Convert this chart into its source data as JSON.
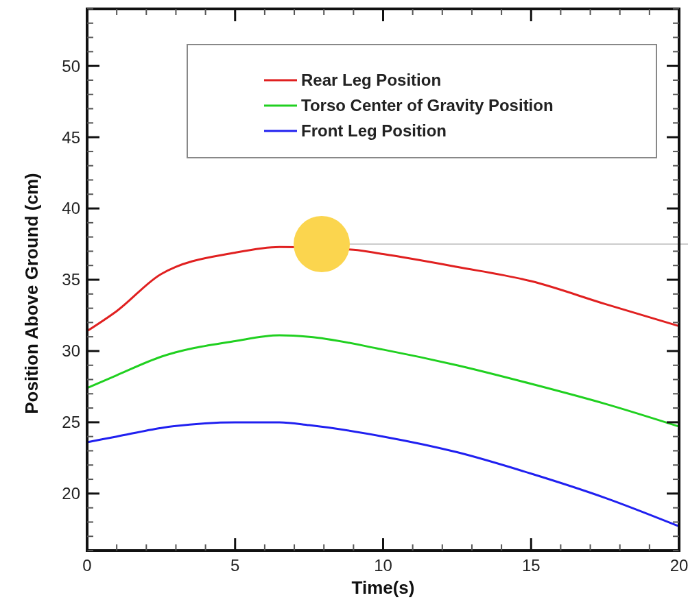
{
  "chart_data": {
    "type": "line",
    "xlabel": "Time(s)",
    "ylabel": "Position Above Ground (cm)",
    "x": [
      0,
      1,
      2.5,
      5,
      6.5,
      7.5,
      10,
      12.5,
      15,
      17.5,
      20
    ],
    "xlim": [
      0,
      20
    ],
    "ylim": [
      16,
      54
    ],
    "xticks": [
      0,
      5,
      10,
      15,
      20
    ],
    "yticks": [
      20,
      25,
      30,
      35,
      40,
      45,
      50
    ],
    "legend": "top right",
    "line_style": "solid",
    "marker": "none",
    "grid": false,
    "series": [
      {
        "name": "Rear Leg Position",
        "color": "#e02020",
        "x": [
          0,
          1,
          2.5,
          5,
          6.5,
          9,
          10,
          12.5,
          15,
          17.5,
          20
        ],
        "values": [
          31.4,
          32.8,
          35.4,
          36.9,
          37.3,
          37.1,
          36.8,
          35.9,
          34.9,
          33.3,
          31.75
        ]
      },
      {
        "name": "Torso Center of Gravity Position",
        "color": "#20d020",
        "values": [
          27.4,
          28.3,
          29.6,
          30.7,
          31.1,
          31.0,
          30.1,
          29.0,
          27.7,
          26.3,
          24.7
        ]
      },
      {
        "name": "Front Leg Position",
        "color": "#2020f0",
        "values": [
          23.6,
          24.0,
          24.6,
          25.0,
          25.0,
          24.8,
          24.0,
          22.9,
          21.4,
          19.7,
          17.7
        ]
      }
    ]
  }
}
